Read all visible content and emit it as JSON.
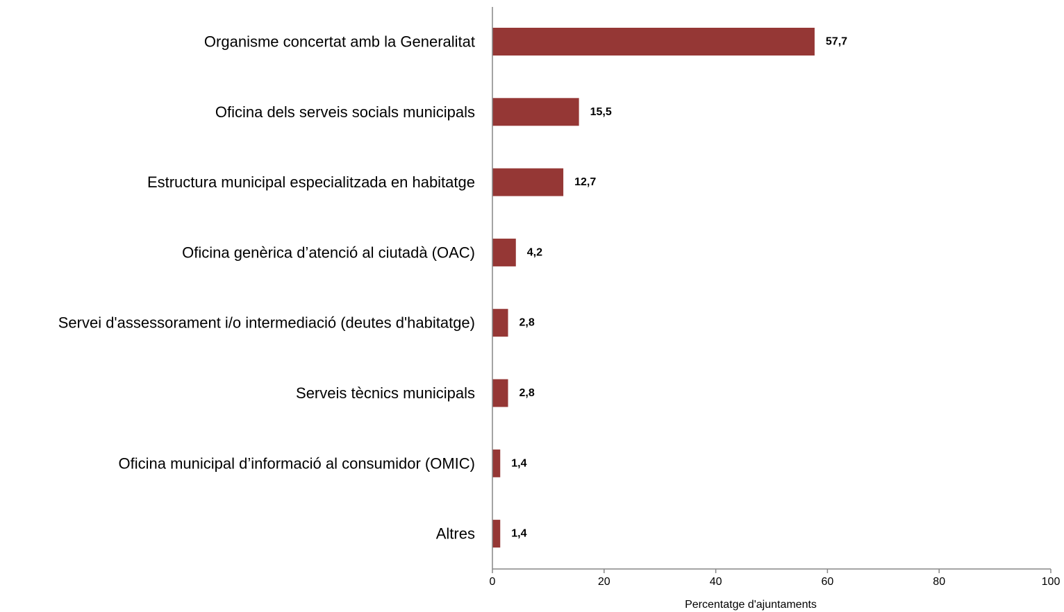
{
  "chart_data": {
    "type": "bar",
    "orientation": "horizontal",
    "title": "",
    "xlabel": "Percentatge d'ajuntaments",
    "ylabel": "",
    "xlim": [
      0,
      100
    ],
    "x_ticks": [
      "0",
      "20",
      "40",
      "60",
      "80",
      "100"
    ],
    "x_tick_values": [
      0,
      20,
      40,
      60,
      80,
      100
    ],
    "grid": false,
    "legend": "none",
    "bar_color": "#953735",
    "categories": [
      "Organisme concertat amb la Generalitat",
      "Oficina dels serveis socials municipals",
      "Estructura municipal especialitzada en habitatge",
      "Oficina genèrica d’atenció al ciutadà (OAC)",
      "Servei d'assessorament i/o intermediació (deutes d'habitatge)",
      "Serveis tècnics municipals",
      "Oficina municipal d’informació al consumidor (OMIC)",
      "Altres"
    ],
    "values": [
      57.7,
      15.5,
      12.7,
      4.2,
      2.8,
      2.8,
      1.4,
      1.4
    ],
    "value_labels": [
      "57,7",
      "15,5",
      "12,7",
      "4,2",
      "2,8",
      "2,8",
      "1,4",
      "1,4"
    ]
  }
}
